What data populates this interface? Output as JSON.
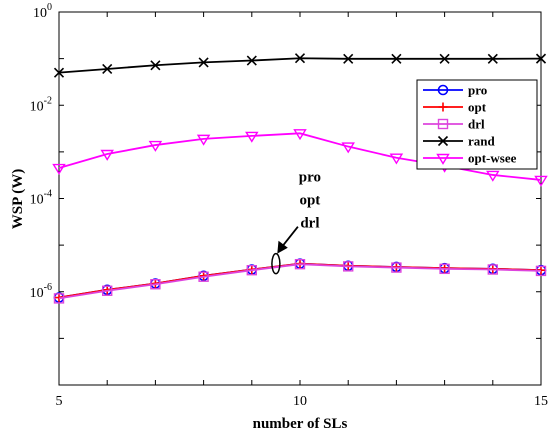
{
  "chart_data": {
    "type": "line",
    "title": "",
    "xlabel": "number of SLs",
    "ylabel": "WSP (W)",
    "xlim": [
      5,
      15
    ],
    "ylim_log10": [
      -8,
      0
    ],
    "yscale": "log",
    "x_ticks": [
      "5",
      "10",
      "15"
    ],
    "y_ticks": [
      {
        "base": "10",
        "exp": "0"
      },
      {
        "base": "10",
        "exp": "-2"
      },
      {
        "base": "10",
        "exp": "-4"
      },
      {
        "base": "10",
        "exp": "-6"
      }
    ],
    "grid": false,
    "legend_position": "top-right",
    "x": [
      5,
      6,
      7,
      8,
      9,
      10,
      11,
      12,
      13,
      14,
      15
    ],
    "series": [
      {
        "name": "pro",
        "color": "#0000ff",
        "marker": "circle",
        "values": [
          7.5e-07,
          1.1e-06,
          1.5e-06,
          2.2e-06,
          3e-06,
          4e-06,
          3.6e-06,
          3.4e-06,
          3.2e-06,
          3.1e-06,
          2.9e-06
        ]
      },
      {
        "name": "opt",
        "color": "#ff0000",
        "marker": "plus",
        "values": [
          7.5e-07,
          1.1e-06,
          1.5e-06,
          2.2e-06,
          3e-06,
          4e-06,
          3.6e-06,
          3.4e-06,
          3.2e-06,
          3.1e-06,
          2.9e-06
        ]
      },
      {
        "name": "drl",
        "color": "#dd44dd",
        "marker": "square",
        "values": [
          7.2e-07,
          1.05e-06,
          1.45e-06,
          2.1e-06,
          2.9e-06,
          3.9e-06,
          3.5e-06,
          3.3e-06,
          3.1e-06,
          3e-06,
          2.8e-06
        ]
      },
      {
        "name": "rand",
        "color": "#000000",
        "marker": "x",
        "values": [
          0.05,
          0.06,
          0.072,
          0.083,
          0.091,
          0.102,
          0.099,
          0.099,
          0.099,
          0.099,
          0.1
        ]
      },
      {
        "name": "opt-wsee",
        "color": "#ff00ff",
        "marker": "triangle-down",
        "values": [
          0.00045,
          0.0009,
          0.0014,
          0.0019,
          0.0022,
          0.0025,
          0.0013,
          0.00075,
          0.0005,
          0.00032,
          0.00025
        ]
      }
    ],
    "annotation": {
      "lines": [
        "pro",
        "opt",
        "drl"
      ],
      "x": 9.5,
      "y": 4e-06
    }
  }
}
